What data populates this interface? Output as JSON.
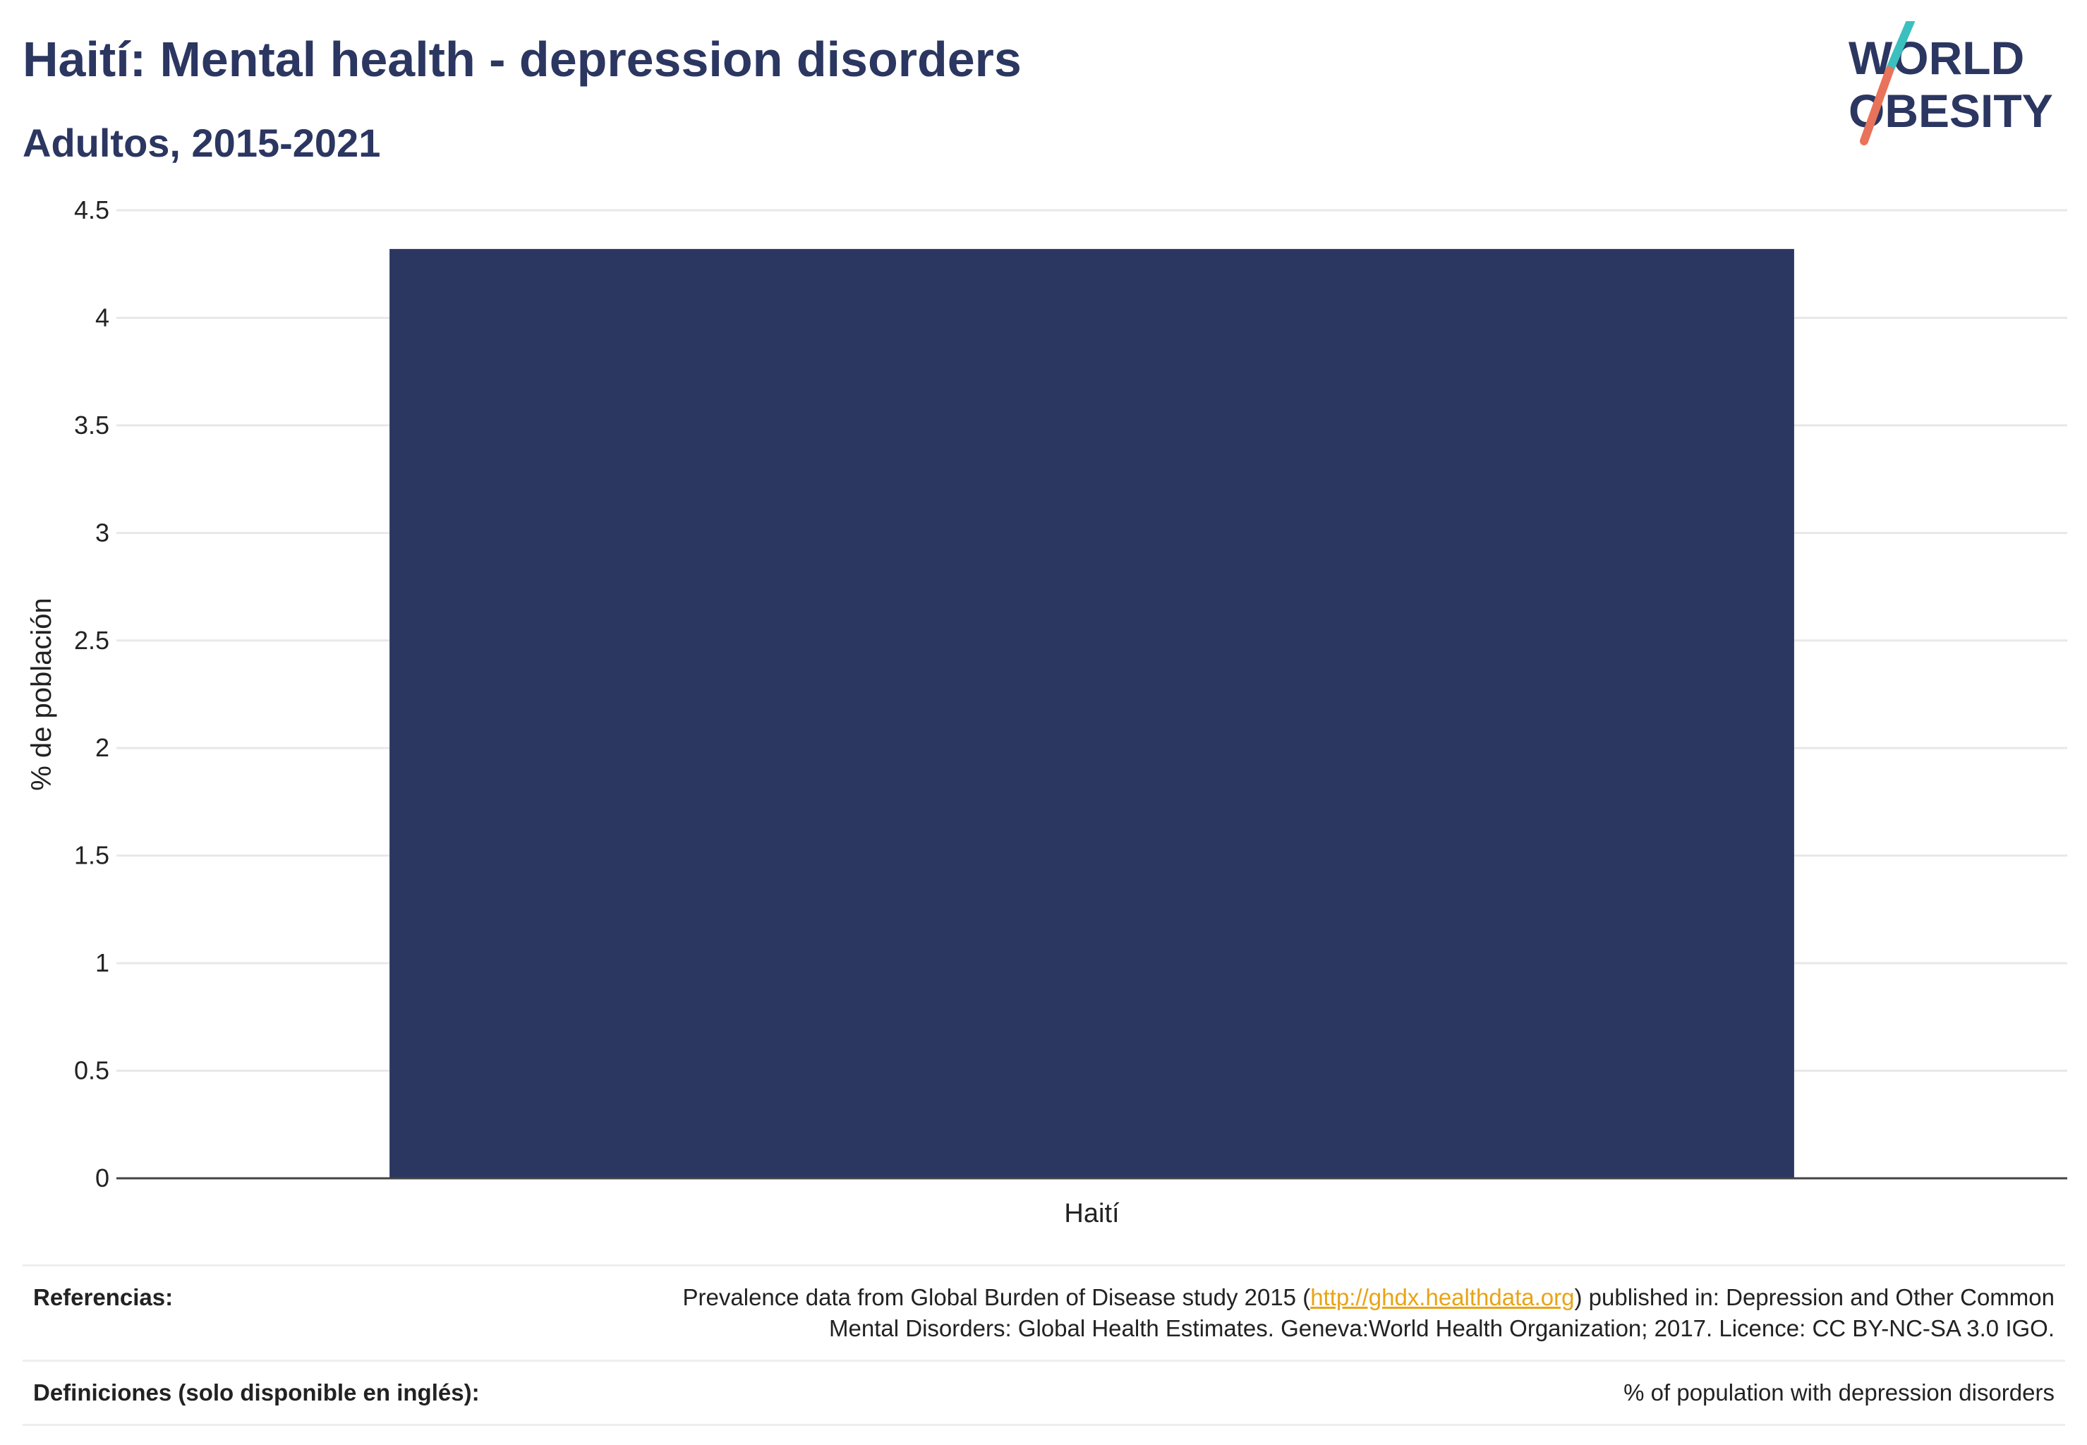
{
  "header": {
    "title": "Haití: Mental health - depression disorders",
    "subtitle": "Adultos, 2015-2021"
  },
  "logo": {
    "line1": "WORLD",
    "line2": "OBESITY",
    "accent_teal": "#3bbfbf",
    "accent_coral": "#e8735a"
  },
  "colors": {
    "bar": "#2b3661",
    "text": "#2b3661",
    "link": "#e8a317"
  },
  "chart_data": {
    "type": "bar",
    "categories": [
      "Haití"
    ],
    "values": [
      4.32
    ],
    "ylabel": "% de población",
    "xlabel": "",
    "ylim": [
      0,
      4.5
    ],
    "yticks": [
      0,
      0.5,
      1,
      1.5,
      2,
      2.5,
      3,
      3.5,
      4,
      4.5
    ],
    "ytick_labels": [
      "0",
      "0.5",
      "1",
      "1.5",
      "2",
      "2.5",
      "3",
      "3.5",
      "4",
      "4.5"
    ],
    "grid": true,
    "legend": "none"
  },
  "references": {
    "label": "Referencias:",
    "text_before": "Prevalence data from Global Burden of Disease study 2015 (",
    "link_text": "http://ghdx.healthdata.org",
    "text_after_line1": ") published in: Depression and Other Common",
    "text_line2": "Mental Disorders: Global Health Estimates. Geneva:World Health Organization; 2017. Licence: CC BY-NC-SA 3.0 IGO."
  },
  "definitions": {
    "label": "Definiciones (solo disponible en inglés):",
    "text": "% of population with depression disorders"
  }
}
